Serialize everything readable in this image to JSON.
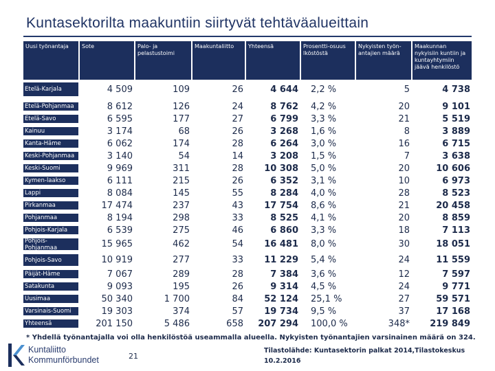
{
  "title": "Kuntasektorilta maakuntiin siirtyvät tehtäväalueittain",
  "colors": {
    "header_bg": "#1c2f5d",
    "text": "#1c2a4a",
    "title": "#1f3364"
  },
  "headers": [
    "Uusi työnantaja",
    "Sote",
    "Palo- ja pelastustoimi",
    "Maakuntaliitto",
    "Yhteensä",
    "Prosentti-osuus lköstöstä",
    "Nykyisten työn-antajien määrä",
    "Maakunnan nykyisiin kuntiin ja kuntayhtymiin jäävä henkilöstö"
  ],
  "rows": [
    {
      "name": "Etelä-Karjala",
      "sote": "4 509",
      "palo": "109",
      "maakuntaliitto": "26",
      "yhteensa": "4 644",
      "prosentti": "2,2 %",
      "tyonantajat": "5",
      "jaava": "4 738"
    },
    {
      "name": "Etelä-Pohjanmaa",
      "sote": "8 612",
      "palo": "126",
      "maakuntaliitto": "24",
      "yhteensa": "8 762",
      "prosentti": "4,2 %",
      "tyonantajat": "20",
      "jaava": "9 101"
    },
    {
      "name": "Etelä-Savo",
      "sote": "6 595",
      "palo": "177",
      "maakuntaliitto": "27",
      "yhteensa": "6 799",
      "prosentti": "3,3 %",
      "tyonantajat": "21",
      "jaava": "5 519"
    },
    {
      "name": "Kainuu",
      "sote": "3 174",
      "palo": "68",
      "maakuntaliitto": "26",
      "yhteensa": "3 268",
      "prosentti": "1,6 %",
      "tyonantajat": "8",
      "jaava": "3 889"
    },
    {
      "name": "Kanta-Häme",
      "sote": "6 062",
      "palo": "174",
      "maakuntaliitto": "28",
      "yhteensa": "6 264",
      "prosentti": "3,0 %",
      "tyonantajat": "16",
      "jaava": "6 715"
    },
    {
      "name": "Keski-Pohjanmaa",
      "sote": "3 140",
      "palo": "54",
      "maakuntaliitto": "14",
      "yhteensa": "3 208",
      "prosentti": "1,5 %",
      "tyonantajat": "7",
      "jaava": "3 638"
    },
    {
      "name": "Keski-Suomi",
      "sote": "9 969",
      "palo": "311",
      "maakuntaliitto": "28",
      "yhteensa": "10 308",
      "prosentti": "5,0 %",
      "tyonantajat": "20",
      "jaava": "10 606"
    },
    {
      "name": "Kymen-laakso",
      "sote": "6 111",
      "palo": "215",
      "maakuntaliitto": "26",
      "yhteensa": "6 352",
      "prosentti": "3,1 %",
      "tyonantajat": "10",
      "jaava": "6 973"
    },
    {
      "name": "Lappi",
      "sote": "8 084",
      "palo": "145",
      "maakuntaliitto": "55",
      "yhteensa": "8 284",
      "prosentti": "4,0 %",
      "tyonantajat": "28",
      "jaava": "8 523"
    },
    {
      "name": "Pirkanmaa",
      "sote": "17 474",
      "palo": "237",
      "maakuntaliitto": "43",
      "yhteensa": "17 754",
      "prosentti": "8,6 %",
      "tyonantajat": "21",
      "jaava": "20 458"
    },
    {
      "name": "Pohjanmaa",
      "sote": "8 194",
      "palo": "298",
      "maakuntaliitto": "33",
      "yhteensa": "8 525",
      "prosentti": "4,1 %",
      "tyonantajat": "20",
      "jaava": "8 859"
    },
    {
      "name": "Pohjois-Karjala",
      "sote": "6 539",
      "palo": "275",
      "maakuntaliitto": "46",
      "yhteensa": "6 860",
      "prosentti": "3,3 %",
      "tyonantajat": "18",
      "jaava": "7 113"
    },
    {
      "name": "Pohjois-Pohjanmaa",
      "sote": "15 965",
      "palo": "462",
      "maakuntaliitto": "54",
      "yhteensa": "16 481",
      "prosentti": "8,0 %",
      "tyonantajat": "30",
      "jaava": "18 051"
    },
    {
      "name": "Pohjois-Savo",
      "sote": "10 919",
      "palo": "277",
      "maakuntaliitto": "33",
      "yhteensa": "11 229",
      "prosentti": "5,4 %",
      "tyonantajat": "24",
      "jaava": "11 559"
    },
    {
      "name": "Päijät-Häme",
      "sote": "7 067",
      "palo": "289",
      "maakuntaliitto": "28",
      "yhteensa": "7 384",
      "prosentti": "3,6 %",
      "tyonantajat": "12",
      "jaava": "7 597"
    },
    {
      "name": "Satakunta",
      "sote": "9 093",
      "palo": "195",
      "maakuntaliitto": "26",
      "yhteensa": "9 314",
      "prosentti": "4,5 %",
      "tyonantajat": "24",
      "jaava": "9 771"
    },
    {
      "name": "Uusimaa",
      "sote": "50 340",
      "palo": "1 700",
      "maakuntaliitto": "84",
      "yhteensa": "52 124",
      "prosentti": "25,1 %",
      "tyonantajat": "27",
      "jaava": "59 571"
    },
    {
      "name": "Varsinais-Suomi",
      "sote": "19 303",
      "palo": "374",
      "maakuntaliitto": "57",
      "yhteensa": "19 734",
      "prosentti": "9,5 %",
      "tyonantajat": "37",
      "jaava": "17 168"
    },
    {
      "name": "Yhteensä",
      "sote": "201 150",
      "palo": "5 486",
      "maakuntaliitto": "658",
      "yhteensa": "207 294",
      "prosentti": "100,0 %",
      "tyonantajat": "348*",
      "jaava": "219 849"
    }
  ],
  "footnote": "* Yhdellä työnantajalla voi olla henkilöstöä useammalla alueella. Nykyisten työnantajien varsinainen määrä on 324.",
  "footer": {
    "logo_line1": "Kuntaliitto",
    "logo_line2": "Kommunförbundet",
    "page_number": "21",
    "source": "Tilastolähde: Kuntasektorin palkat 2014,Tilastokeskus 10.2.2016"
  }
}
